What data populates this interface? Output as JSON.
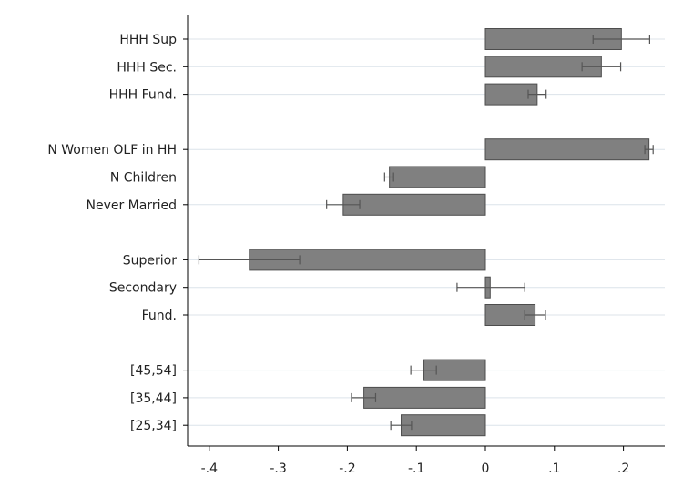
{
  "chart_data": {
    "type": "bar",
    "orientation": "horizontal",
    "title": "",
    "xlabel": "",
    "ylabel": "",
    "xlim": [
      -0.43,
      0.26
    ],
    "x_ticks": [
      -0.4,
      -0.3,
      -0.2,
      -0.1,
      0,
      0.1,
      0.2
    ],
    "x_tick_labels": [
      "-.4",
      "-.3",
      "-.2",
      "-.1",
      "0",
      ".1",
      ".2"
    ],
    "grid": true,
    "legend": "none",
    "colors": {
      "bar_fill": "#808080",
      "bar_stroke": "#4d4d4d",
      "grid": "#dce3ea",
      "axis": "#000000",
      "errorbar": "#555555"
    },
    "groups": [
      {
        "categories": [
          "HHH Sup",
          "HHH Sec.",
          "HHH Fund."
        ]
      },
      {
        "categories": [
          "N Women OLF in HH",
          "N Children",
          "Never Married"
        ]
      },
      {
        "categories": [
          "Superior",
          "Secondary",
          "Fund."
        ]
      },
      {
        "categories": [
          "[45,54]",
          "[35,44]",
          "[25,34]"
        ]
      }
    ],
    "categories": [
      "HHH Sup",
      "HHH Sec.",
      "HHH Fund.",
      "N Women OLF in HH",
      "N Children",
      "Never Married",
      "Superior",
      "Secondary",
      "Fund.",
      "[45,54]",
      "[35,44]",
      "[25,34]"
    ],
    "values": [
      0.197,
      0.168,
      0.075,
      0.237,
      -0.139,
      -0.206,
      -0.342,
      0.007,
      0.072,
      -0.089,
      -0.176,
      -0.122
    ],
    "ci_low": [
      0.156,
      0.14,
      0.062,
      0.231,
      -0.146,
      -0.23,
      -0.415,
      -0.041,
      0.057,
      -0.108,
      -0.194,
      -0.137
    ],
    "ci_high": [
      0.238,
      0.196,
      0.088,
      0.243,
      -0.133,
      -0.182,
      -0.269,
      0.057,
      0.087,
      -0.071,
      -0.159,
      -0.107
    ]
  }
}
